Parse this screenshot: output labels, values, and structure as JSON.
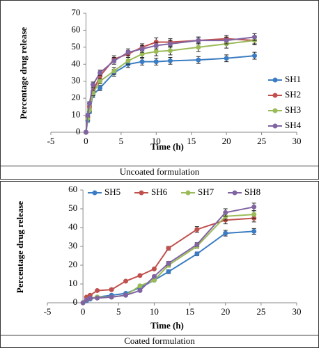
{
  "chart_data": [
    {
      "type": "line",
      "caption": "Uncoated formulation",
      "y_label": "Percentage drug release",
      "x_label": "Time (h)",
      "x": [
        0,
        0.25,
        0.5,
        1,
        2,
        4,
        6,
        8,
        10,
        12,
        16,
        20,
        24
      ],
      "series": [
        {
          "name": "SH1",
          "color": "#3b7cc2",
          "values": [
            0,
            7,
            12,
            22,
            26,
            35,
            40,
            41.5,
            41.5,
            42,
            42.5,
            43.5,
            45
          ],
          "errors": [
            0,
            1,
            1,
            1.5,
            1.5,
            2,
            2,
            2,
            2,
            2,
            2,
            2,
            2
          ]
        },
        {
          "name": "SH2",
          "color": "#c0504d",
          "values": [
            0,
            9,
            15,
            24,
            33,
            43,
            46,
            50,
            53,
            53,
            54,
            55,
            54
          ],
          "errors": [
            0,
            1,
            1,
            1.5,
            1.5,
            2,
            2,
            2,
            2.5,
            2,
            2,
            2,
            2
          ]
        },
        {
          "name": "SH3",
          "color": "#9bbb59",
          "values": [
            0,
            8,
            13,
            23,
            30,
            36,
            42,
            46,
            47.5,
            48,
            50,
            52,
            54
          ],
          "errors": [
            0,
            1,
            1,
            1.5,
            1.5,
            2,
            2,
            2,
            2.5,
            2.5,
            2.5,
            2.5,
            2.5
          ]
        },
        {
          "name": "SH4",
          "color": "#8064a2",
          "values": [
            0,
            10,
            17,
            28,
            35,
            42,
            47,
            49,
            51,
            52,
            54,
            54,
            56
          ],
          "errors": [
            0,
            1,
            1,
            1.5,
            1.5,
            2,
            2,
            2,
            2,
            2,
            2,
            2,
            2
          ]
        }
      ],
      "xlim": [
        -5,
        30
      ],
      "xticks": [
        -5,
        0,
        5,
        10,
        15,
        20,
        25,
        30
      ],
      "ylim": [
        0,
        70
      ],
      "yticks": [
        0,
        10,
        20,
        30,
        40,
        50,
        60,
        70
      ],
      "legend": "right"
    },
    {
      "type": "line",
      "caption": "Coated formulation",
      "y_label": "Percentage drug release",
      "x_label": "Time (h)",
      "x": [
        0,
        0.5,
        1,
        2,
        4,
        6,
        8,
        10,
        12,
        16,
        20,
        24
      ],
      "series": [
        {
          "name": "SH5",
          "color": "#3b7cc2",
          "values": [
            0,
            1,
            2,
            3,
            4,
            5,
            8,
            12,
            16.5,
            26,
            37,
            38
          ],
          "errors": [
            0,
            0.5,
            0.5,
            0.5,
            0.5,
            0.5,
            0.5,
            0.5,
            1,
            1,
            1.5,
            1.5
          ]
        },
        {
          "name": "SH6",
          "color": "#c0504d",
          "values": [
            0,
            3,
            4,
            6.5,
            7,
            11.5,
            14.5,
            18,
            29,
            39,
            44,
            45
          ],
          "errors": [
            0,
            0.5,
            0.5,
            0.5,
            0.5,
            0.5,
            0.5,
            0.5,
            1,
            1.5,
            2,
            2
          ]
        },
        {
          "name": "SH7",
          "color": "#9bbb59",
          "values": [
            0,
            1.5,
            2.5,
            3,
            3,
            4,
            9,
            12,
            20,
            30,
            46,
            47
          ],
          "errors": [
            0,
            0.5,
            0.5,
            0.5,
            0.5,
            0.5,
            0.5,
            0.5,
            1,
            1,
            2,
            2
          ]
        },
        {
          "name": "SH8",
          "color": "#8064a2",
          "values": [
            0,
            1.5,
            2.5,
            2.5,
            3,
            4,
            6.5,
            14,
            21,
            31,
            48,
            51
          ],
          "errors": [
            0,
            0.5,
            0.5,
            0.5,
            0.5,
            0.5,
            0.5,
            0.5,
            1,
            1,
            2,
            2
          ]
        }
      ],
      "xlim": [
        -5,
        30
      ],
      "xticks": [
        -5,
        0,
        5,
        10,
        15,
        20,
        25,
        30
      ],
      "ylim": [
        0,
        60
      ],
      "yticks": [
        0,
        10,
        20,
        30,
        40,
        50,
        60
      ],
      "legend": "top"
    }
  ]
}
